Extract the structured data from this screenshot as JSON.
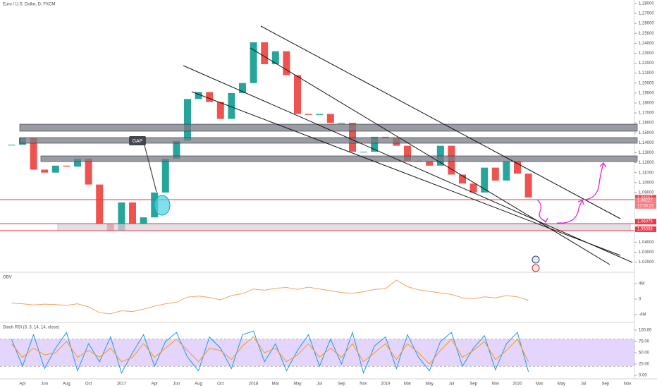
{
  "chart_data": [
    {
      "type": "candlestick",
      "title": "Euro / U.S. Dollar, D, FXCM",
      "categories": [
        null,
        "Apr",
        null,
        "Jun",
        null,
        "Aug",
        null,
        "Oct",
        null,
        null,
        "2017",
        null,
        null,
        "Apr",
        null,
        "Jun",
        null,
        "Aug",
        null,
        "Oct",
        null,
        null,
        "2018",
        null,
        "Mar",
        null,
        "May",
        null,
        "Jul",
        null,
        "Sep",
        null,
        "Nov",
        null,
        "2019",
        null,
        "Mar",
        null,
        "May",
        null,
        "Jul",
        null,
        "Sep",
        null,
        "Nov",
        null,
        "2020",
        null,
        "Mar",
        null,
        "May",
        null,
        "Jul",
        null,
        "Sep",
        null,
        "Nov"
      ],
      "values": [
        1.138,
        1.145,
        1.113,
        1.11,
        1.117,
        1.116,
        1.124,
        1.098,
        1.059,
        1.052,
        1.08,
        1.059,
        1.065,
        1.09,
        1.124,
        1.142,
        1.184,
        1.191,
        1.181,
        1.164,
        1.19,
        1.2,
        1.241,
        1.219,
        1.232,
        1.208,
        1.169,
        1.168,
        1.169,
        1.16,
        1.16,
        1.131,
        1.131,
        1.146,
        1.145,
        1.137,
        1.122,
        1.121,
        1.117,
        1.137,
        1.108,
        1.099,
        1.09,
        1.115,
        1.102,
        1.121,
        1.109,
        1.085,
        null,
        null,
        null,
        null,
        null,
        null,
        null,
        null,
        null
      ],
      "up_color": "#26a69a",
      "down_color": "#ef5350",
      "ylim": [
        1.0105,
        1.2835
      ],
      "yticks": [
        {
          "value": 1.28,
          "label": "1.28000"
        },
        {
          "value": 1.27,
          "label": "1.27000"
        },
        {
          "value": 1.26,
          "label": "1.26000"
        },
        {
          "value": 1.25,
          "label": "1.25000"
        },
        {
          "value": 1.24,
          "label": "1.24000"
        },
        {
          "value": 1.23,
          "label": "1.23000"
        },
        {
          "value": 1.22,
          "label": "1.22000"
        },
        {
          "value": 1.21,
          "label": "1.21000"
        },
        {
          "value": 1.2,
          "label": "1.20000"
        },
        {
          "value": 1.19,
          "label": "1.19000"
        },
        {
          "value": 1.18,
          "label": "1.18000"
        },
        {
          "value": 1.17,
          "label": "1.17000"
        },
        {
          "value": 1.16,
          "label": "1.16000"
        },
        {
          "value": 1.15,
          "label": "1.15000"
        },
        {
          "value": 1.14,
          "label": "1.14000"
        },
        {
          "value": 1.13,
          "label": "1.13000"
        },
        {
          "value": 1.12,
          "label": "1.12000"
        },
        {
          "value": 1.11,
          "label": "1.11000"
        },
        {
          "value": 1.1,
          "label": "1.10000"
        },
        {
          "value": 1.09,
          "label": "1.09000"
        },
        {
          "value": 1.04,
          "label": "1.04000"
        },
        {
          "value": 1.03,
          "label": "1.03000"
        },
        {
          "value": 1.02,
          "label": "1.02000"
        }
      ],
      "price_labels": [
        {
          "value": 1.08467,
          "label": "1.08467",
          "color": "#f23645"
        },
        {
          "value": 1.08227,
          "label": "1.08227",
          "color": "#f77c80"
        },
        {
          "value": 1.06075,
          "label": "1.06075",
          "color": "#f23645"
        },
        {
          "value": 1.05308,
          "label": "1.05308",
          "color": "#f23645"
        }
      ],
      "countdown": "17:03:22",
      "annotation": "GAP"
    },
    {
      "type": "line",
      "title": "OBV",
      "color": "#f5a25d",
      "values": [
        -1000000,
        -1200000,
        -1500000,
        -1300000,
        -1400000,
        -1600000,
        -1200000,
        -2000000,
        -3500000,
        -3800000,
        -3000000,
        -3200000,
        -2600000,
        -1800000,
        -1200000,
        -800000,
        500000,
        800000,
        400000,
        -200000,
        900000,
        1400000,
        2600000,
        2300000,
        2800000,
        3000000,
        2500000,
        3100000,
        2600000,
        2200000,
        1700000,
        1500000,
        1900000,
        2500000,
        2700000,
        4900000,
        3200000,
        2400000,
        2000000,
        1600000,
        1200000,
        300000,
        100000,
        600000,
        300000,
        900000,
        600000,
        -300000,
        null,
        null,
        null,
        null,
        null,
        null,
        null,
        null,
        null
      ],
      "ylim": [
        -5640000,
        6730000
      ],
      "yticks": [
        {
          "value": 4000000,
          "label": "4M"
        },
        0,
        {
          "value": -4000000,
          "label": "-4M"
        }
      ]
    },
    {
      "type": "line",
      "title": "Stoch RSI (3, 3, 14, 14, close)",
      "series": [
        {
          "color": "#2196f3",
          "values": [
            80,
            20,
            90,
            15,
            60,
            95,
            10,
            70,
            30,
            85,
            5,
            50,
            90,
            20,
            75,
            95,
            40,
            10,
            85,
            60,
            15,
            90,
            98,
            30,
            70,
            10,
            55,
            90,
            20,
            80,
            25,
            95,
            5,
            65,
            85,
            15,
            90,
            40,
            10,
            75,
            95,
            20,
            60,
            88,
            12,
            70,
            95,
            8,
            null,
            null,
            null,
            null,
            null,
            null,
            null,
            null,
            null
          ]
        },
        {
          "color": "#ff9800",
          "values": [
            70,
            40,
            60,
            45,
            50,
            75,
            40,
            55,
            40,
            60,
            30,
            40,
            70,
            40,
            60,
            80,
            55,
            30,
            60,
            55,
            35,
            65,
            85,
            50,
            60,
            30,
            45,
            70,
            40,
            60,
            40,
            70,
            30,
            50,
            70,
            35,
            70,
            50,
            25,
            55,
            80,
            40,
            55,
            75,
            35,
            55,
            80,
            30,
            null,
            null,
            null,
            null,
            null,
            null,
            null,
            null,
            null
          ]
        }
      ],
      "band": [
        20,
        80
      ],
      "band_color": "#b388ff",
      "ylim": [
        -7.8,
        112.5
      ],
      "yticks": [
        {
          "value": 100,
          "label": "100.00"
        },
        {
          "value": 75,
          "label": "75.00"
        },
        {
          "value": 50,
          "label": "50.00"
        },
        {
          "value": 25,
          "label": "25.00"
        },
        {
          "value": 0,
          "label": "0.00"
        }
      ]
    }
  ]
}
